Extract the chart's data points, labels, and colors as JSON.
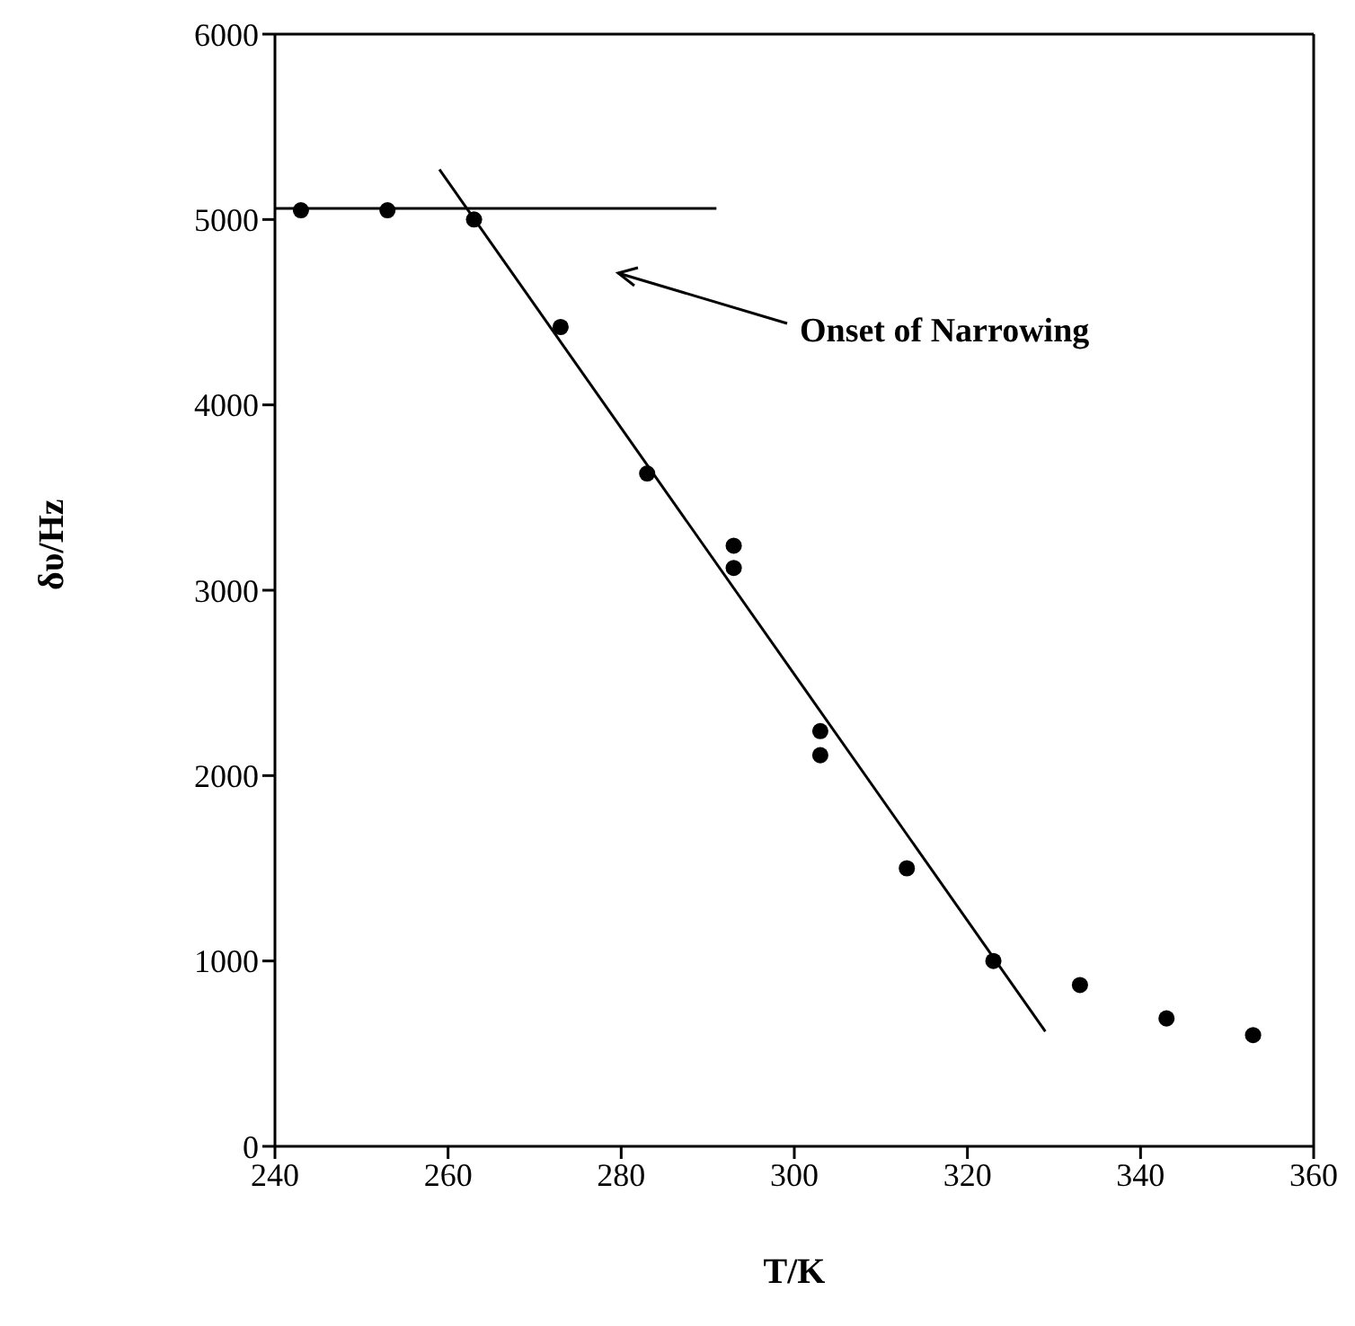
{
  "chart_data": {
    "type": "scatter",
    "xlabel": "T/K",
    "ylabel": "δυ/Hz",
    "xlim": [
      240,
      360
    ],
    "xticks": [
      240,
      260,
      280,
      300,
      320,
      340,
      360
    ],
    "ylim": [
      0,
      6000
    ],
    "yticks": [
      0,
      1000,
      2000,
      3000,
      4000,
      5000,
      6000
    ],
    "grid": false,
    "marker": "circle",
    "annotations": [
      "Onset of Narrowing"
    ],
    "series": [
      {
        "color": "#000000",
        "x": [
          243,
          253,
          263,
          273,
          283,
          293,
          293,
          303,
          303,
          313,
          323,
          333,
          343,
          353
        ],
        "values": [
          5050,
          5050,
          5000,
          4420,
          3630,
          3240,
          3120,
          2240,
          2110,
          1500,
          1000,
          870,
          690,
          600
        ]
      },
      {
        "type": "line",
        "color": "#000000",
        "marker": "none",
        "x": [
          240,
          291
        ],
        "values": [
          5060,
          5060
        ]
      },
      {
        "type": "line",
        "color": "#000000",
        "marker": "none",
        "x": [
          259,
          329
        ],
        "values": [
          5270,
          620
        ]
      }
    ]
  }
}
